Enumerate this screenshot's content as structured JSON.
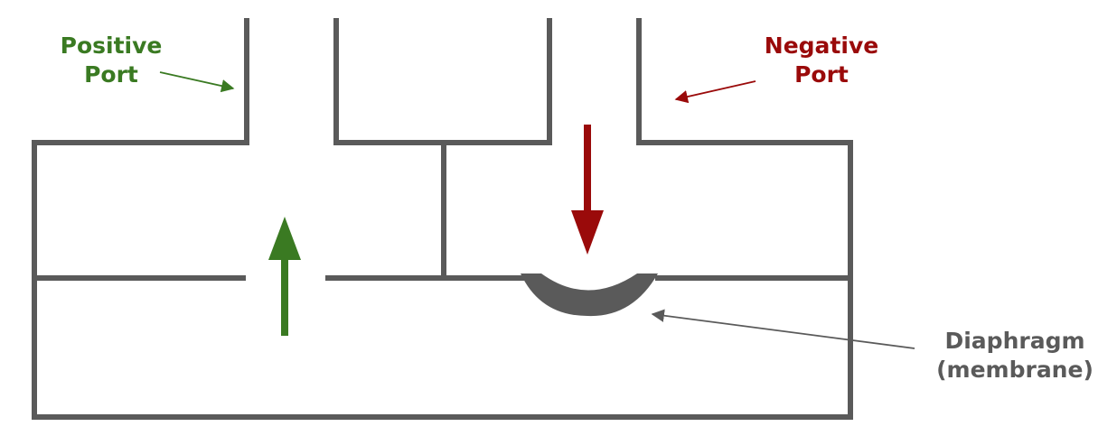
{
  "labels": {
    "positive": {
      "line1": "Positive",
      "line2": "Port"
    },
    "negative": {
      "line1": "Negative",
      "line2": "Port"
    },
    "diaphragm": {
      "line1": "Diaphragm",
      "line2": "(membrane)"
    }
  },
  "colors": {
    "wall": "#5a5a5a",
    "positive": "#3a7a22",
    "negative": "#9a0a0a",
    "diaphragm_label": "#5a5a5a"
  }
}
